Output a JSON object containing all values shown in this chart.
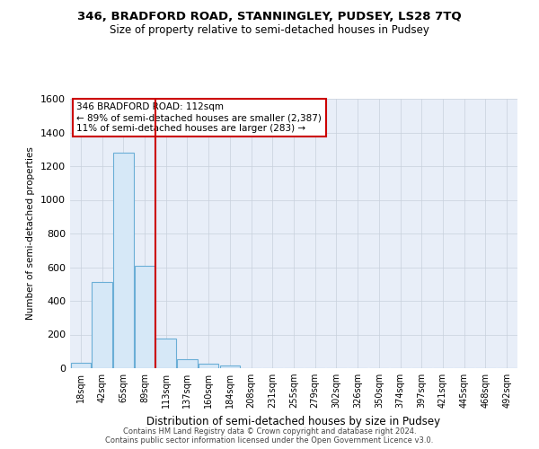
{
  "title1": "346, BRADFORD ROAD, STANNINGLEY, PUDSEY, LS28 7TQ",
  "title2": "Size of property relative to semi-detached houses in Pudsey",
  "xlabel": "Distribution of semi-detached houses by size in Pudsey",
  "ylabel": "Number of semi-detached properties",
  "footer1": "Contains HM Land Registry data © Crown copyright and database right 2024.",
  "footer2": "Contains public sector information licensed under the Open Government Licence v3.0.",
  "bins": [
    "18sqm",
    "42sqm",
    "65sqm",
    "89sqm",
    "113sqm",
    "137sqm",
    "160sqm",
    "184sqm",
    "208sqm",
    "231sqm",
    "255sqm",
    "279sqm",
    "302sqm",
    "326sqm",
    "350sqm",
    "374sqm",
    "397sqm",
    "421sqm",
    "445sqm",
    "468sqm",
    "492sqm"
  ],
  "values": [
    30,
    510,
    1280,
    610,
    178,
    55,
    25,
    15,
    0,
    0,
    0,
    0,
    0,
    0,
    0,
    0,
    0,
    0,
    0,
    0,
    0
  ],
  "bar_color": "#d6e8f7",
  "bar_edge_color": "#6aaed6",
  "marker_bin_index": 3,
  "marker_color": "#cc0000",
  "annotation_line1": "346 BRADFORD ROAD: 112sqm",
  "annotation_line2": "← 89% of semi-detached houses are smaller (2,387)",
  "annotation_line3": "11% of semi-detached houses are larger (283) →",
  "annotation_box_color": "#ffffff",
  "annotation_box_edge": "#cc0000",
  "ylim": [
    0,
    1600
  ],
  "yticks": [
    0,
    200,
    400,
    600,
    800,
    1000,
    1200,
    1400,
    1600
  ],
  "bg_color": "#ffffff",
  "plot_bg_color": "#e8eef8",
  "grid_color": "#c8d0dc"
}
